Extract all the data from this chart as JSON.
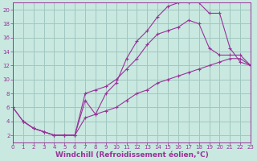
{
  "background_color": "#c8e8e0",
  "grid_color": "#a0c8c0",
  "line_color": "#993399",
  "xlabel": "Windchill (Refroidissement éolien,°C)",
  "xlim": [
    0,
    23
  ],
  "ylim": [
    1,
    21
  ],
  "xticks": [
    0,
    1,
    2,
    3,
    4,
    5,
    6,
    7,
    8,
    9,
    10,
    11,
    12,
    13,
    14,
    15,
    16,
    17,
    18,
    19,
    20,
    21,
    22,
    23
  ],
  "yticks": [
    2,
    4,
    6,
    8,
    10,
    12,
    14,
    16,
    18,
    20
  ],
  "curve1_x": [
    0,
    1,
    2,
    3,
    4,
    5,
    6,
    7,
    8,
    9,
    10,
    11,
    12,
    13,
    14,
    15,
    16,
    17,
    18,
    19,
    20,
    21,
    22,
    23
  ],
  "curve1_y": [
    6.0,
    4.0,
    3.0,
    2.5,
    2.0,
    2.0,
    2.0,
    7.0,
    5.0,
    8.0,
    9.5,
    13.0,
    15.5,
    17.0,
    19.0,
    20.5,
    21.0,
    21.0,
    21.0,
    19.5,
    19.5,
    14.5,
    12.5,
    12.0
  ],
  "curve2_x": [
    0,
    1,
    2,
    3,
    4,
    5,
    6,
    7,
    8,
    9,
    10,
    11,
    12,
    13,
    14,
    15,
    16,
    17,
    18,
    19,
    20,
    21,
    22,
    23
  ],
  "curve2_y": [
    6.0,
    4.0,
    3.0,
    2.5,
    2.0,
    2.0,
    2.0,
    4.5,
    5.0,
    5.5,
    6.0,
    7.0,
    8.0,
    8.5,
    9.5,
    10.0,
    10.5,
    11.0,
    11.5,
    12.0,
    12.5,
    13.0,
    13.0,
    12.0
  ],
  "curve3_x": [
    1,
    2,
    3,
    4,
    5,
    6,
    7,
    8,
    9,
    10,
    11,
    12,
    13,
    14,
    15,
    16,
    17,
    18,
    19,
    20,
    21,
    22,
    23
  ],
  "curve3_y": [
    4.0,
    3.0,
    2.5,
    2.0,
    2.0,
    2.0,
    8.0,
    8.5,
    9.0,
    10.0,
    11.5,
    13.0,
    15.0,
    16.5,
    17.0,
    17.5,
    18.5,
    18.0,
    14.5,
    13.5,
    13.5,
    13.5,
    12.0
  ],
  "tick_fontsize": 5.0,
  "xlabel_fontsize": 6.5
}
